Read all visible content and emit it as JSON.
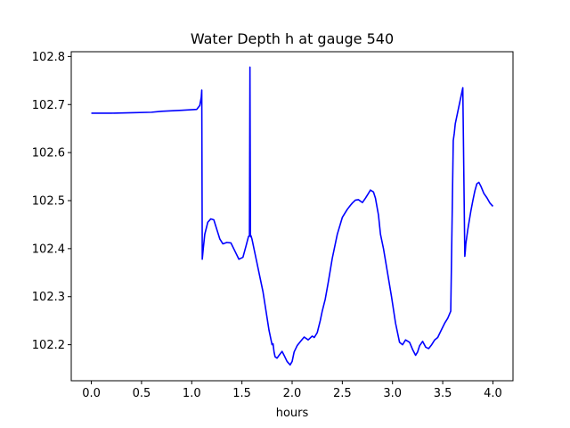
{
  "chart_data": {
    "type": "line",
    "title": "Water Depth h at gauge 540",
    "xlabel": "hours",
    "ylabel": "",
    "xlim": [
      -0.2,
      4.2
    ],
    "ylim": [
      102.125,
      102.81
    ],
    "xticks": [
      0.0,
      0.5,
      1.0,
      1.5,
      2.0,
      2.5,
      3.0,
      3.5,
      4.0
    ],
    "xtick_labels": [
      "0.0",
      "0.5",
      "1.0",
      "1.5",
      "2.0",
      "2.5",
      "3.0",
      "3.5",
      "4.0"
    ],
    "yticks": [
      102.2,
      102.3,
      102.4,
      102.5,
      102.6,
      102.7,
      102.8
    ],
    "ytick_labels": [
      "102.2",
      "102.3",
      "102.4",
      "102.5",
      "102.6",
      "102.7",
      "102.8"
    ],
    "grid": false,
    "series": [
      {
        "color": "#0000ff",
        "x": [
          0.0,
          0.2,
          0.4,
          0.6,
          0.7,
          0.9,
          1.05,
          1.08,
          1.095,
          1.1,
          1.105,
          1.115,
          1.13,
          1.16,
          1.19,
          1.22,
          1.25,
          1.28,
          1.31,
          1.35,
          1.39,
          1.43,
          1.47,
          1.51,
          1.54,
          1.565,
          1.575,
          1.58,
          1.585,
          1.59,
          1.6,
          1.62,
          1.65,
          1.68,
          1.71,
          1.74,
          1.77,
          1.8,
          1.81,
          1.82,
          1.83,
          1.85,
          1.87,
          1.9,
          1.92,
          1.95,
          1.98,
          2.0,
          2.02,
          2.05,
          2.08,
          2.12,
          2.16,
          2.2,
          2.22,
          2.25,
          2.28,
          2.3,
          2.33,
          2.36,
          2.4,
          2.45,
          2.5,
          2.55,
          2.58,
          2.6,
          2.63,
          2.66,
          2.7,
          2.73,
          2.76,
          2.78,
          2.81,
          2.83,
          2.86,
          2.88,
          2.91,
          2.95,
          2.99,
          3.03,
          3.07,
          3.1,
          3.13,
          3.17,
          3.2,
          3.23,
          3.25,
          3.27,
          3.3,
          3.33,
          3.36,
          3.39,
          3.42,
          3.45,
          3.48,
          3.52,
          3.55,
          3.58,
          3.605,
          3.615,
          3.62,
          3.625,
          3.7,
          3.72,
          3.725,
          3.73,
          3.75,
          3.78,
          3.8,
          3.82,
          3.84,
          3.86,
          3.88,
          3.91,
          3.94,
          3.97,
          4.0
        ],
        "y": [
          102.682,
          102.682,
          102.683,
          102.684,
          102.686,
          102.688,
          102.69,
          102.698,
          102.715,
          102.73,
          102.378,
          102.4,
          102.43,
          102.455,
          102.462,
          102.46,
          102.44,
          102.42,
          102.41,
          102.413,
          102.412,
          102.395,
          102.378,
          102.382,
          102.405,
          102.425,
          102.427,
          102.778,
          102.425,
          102.427,
          102.42,
          102.4,
          102.37,
          102.34,
          102.31,
          102.27,
          102.23,
          102.2,
          102.202,
          102.185,
          102.175,
          102.172,
          102.178,
          102.186,
          102.178,
          102.165,
          102.158,
          102.165,
          102.185,
          102.198,
          102.206,
          102.216,
          102.21,
          102.218,
          102.215,
          102.225,
          102.25,
          102.27,
          102.295,
          102.33,
          102.38,
          102.43,
          102.465,
          102.482,
          102.49,
          102.495,
          102.501,
          102.502,
          102.496,
          102.505,
          102.515,
          102.522,
          102.518,
          102.505,
          102.47,
          102.43,
          102.4,
          102.35,
          102.3,
          102.245,
          102.205,
          102.2,
          102.21,
          102.205,
          102.19,
          102.178,
          102.185,
          102.198,
          102.207,
          102.195,
          102.192,
          102.2,
          102.21,
          102.215,
          102.228,
          102.245,
          102.255,
          102.27,
          102.625,
          102.64,
          102.65,
          102.66,
          102.735,
          102.384,
          102.395,
          102.41,
          102.44,
          102.478,
          102.5,
          102.52,
          102.535,
          102.538,
          102.53,
          102.515,
          102.506,
          102.495,
          102.488
        ]
      }
    ]
  }
}
